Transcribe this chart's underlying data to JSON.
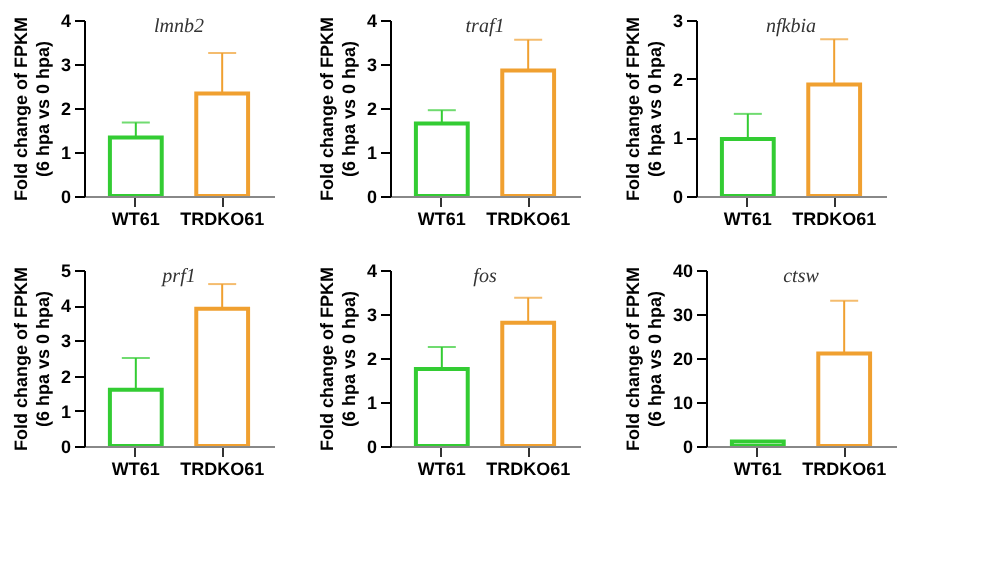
{
  "chart_data": [
    {
      "type": "bar",
      "title": "lmnb2",
      "ylabel": "Fold change of FPKM\n(6 hpa vs 0 hpa)",
      "categories": [
        "WT61",
        "TRDKO61"
      ],
      "values": [
        1.33,
        2.33
      ],
      "colors": [
        "#33cc33",
        "#f0a030"
      ],
      "errors": [
        [
          1.33,
          1.67
        ],
        [
          2.33,
          3.25
        ]
      ],
      "ylim": [
        0,
        4
      ],
      "yticks": [
        0,
        1,
        2,
        3,
        4
      ],
      "grid": false
    },
    {
      "type": "bar",
      "title": "traf1",
      "ylabel": "Fold change of FPKM\n(6 hpa vs 0 hpa)",
      "categories": [
        "WT61",
        "TRDKO61"
      ],
      "values": [
        1.65,
        2.85
      ],
      "colors": [
        "#33cc33",
        "#f0a030"
      ],
      "errors": [
        [
          1.65,
          1.95
        ],
        [
          2.85,
          3.55
        ]
      ],
      "ylim": [
        0,
        4
      ],
      "yticks": [
        0,
        1,
        2,
        3,
        4
      ],
      "grid": false
    },
    {
      "type": "bar",
      "title": "nfkbia",
      "ylabel": "Fold change of FPKM\n(6 hpa vs 0 hpa)",
      "categories": [
        "WT61",
        "TRDKO61"
      ],
      "values": [
        0.97,
        1.9
      ],
      "colors": [
        "#33cc33",
        "#f0a030"
      ],
      "errors": [
        [
          0.97,
          1.4
        ],
        [
          1.9,
          2.67
        ]
      ],
      "ylim": [
        0,
        3
      ],
      "yticks": [
        0,
        1,
        2,
        3
      ],
      "grid": false
    },
    {
      "type": "bar",
      "title": "prf1",
      "ylabel": "Fold change of FPKM\n(6 hpa vs 0 hpa)",
      "categories": [
        "WT61",
        "TRDKO61"
      ],
      "values": [
        1.6,
        3.9
      ],
      "colors": [
        "#33cc33",
        "#f0a030"
      ],
      "errors": [
        [
          1.6,
          2.5
        ],
        [
          3.9,
          4.6
        ]
      ],
      "ylim": [
        0,
        5
      ],
      "yticks": [
        0,
        1,
        2,
        3,
        4,
        5
      ],
      "grid": false
    },
    {
      "type": "bar",
      "title": "fos",
      "ylabel": "Fold change of FPKM\n(6 hpa vs 0 hpa)",
      "categories": [
        "WT61",
        "TRDKO61"
      ],
      "values": [
        1.75,
        2.8
      ],
      "colors": [
        "#33cc33",
        "#f0a030"
      ],
      "errors": [
        [
          1.75,
          2.25
        ],
        [
          2.8,
          3.37
        ]
      ],
      "ylim": [
        0,
        4
      ],
      "yticks": [
        0,
        1,
        2,
        3,
        4
      ],
      "grid": false
    },
    {
      "type": "bar",
      "title": "ctsw",
      "ylabel": "Fold change of FPKM\n(6 hpa vs 0 hpa)",
      "categories": [
        "WT61",
        "TRDKO61"
      ],
      "values": [
        1,
        21
      ],
      "colors": [
        "#33cc33",
        "#f0a030"
      ],
      "errors": [
        null,
        [
          21,
          33
        ]
      ],
      "ylim": [
        0,
        40
      ],
      "yticks": [
        0,
        10,
        20,
        30,
        40
      ],
      "grid": false
    }
  ]
}
